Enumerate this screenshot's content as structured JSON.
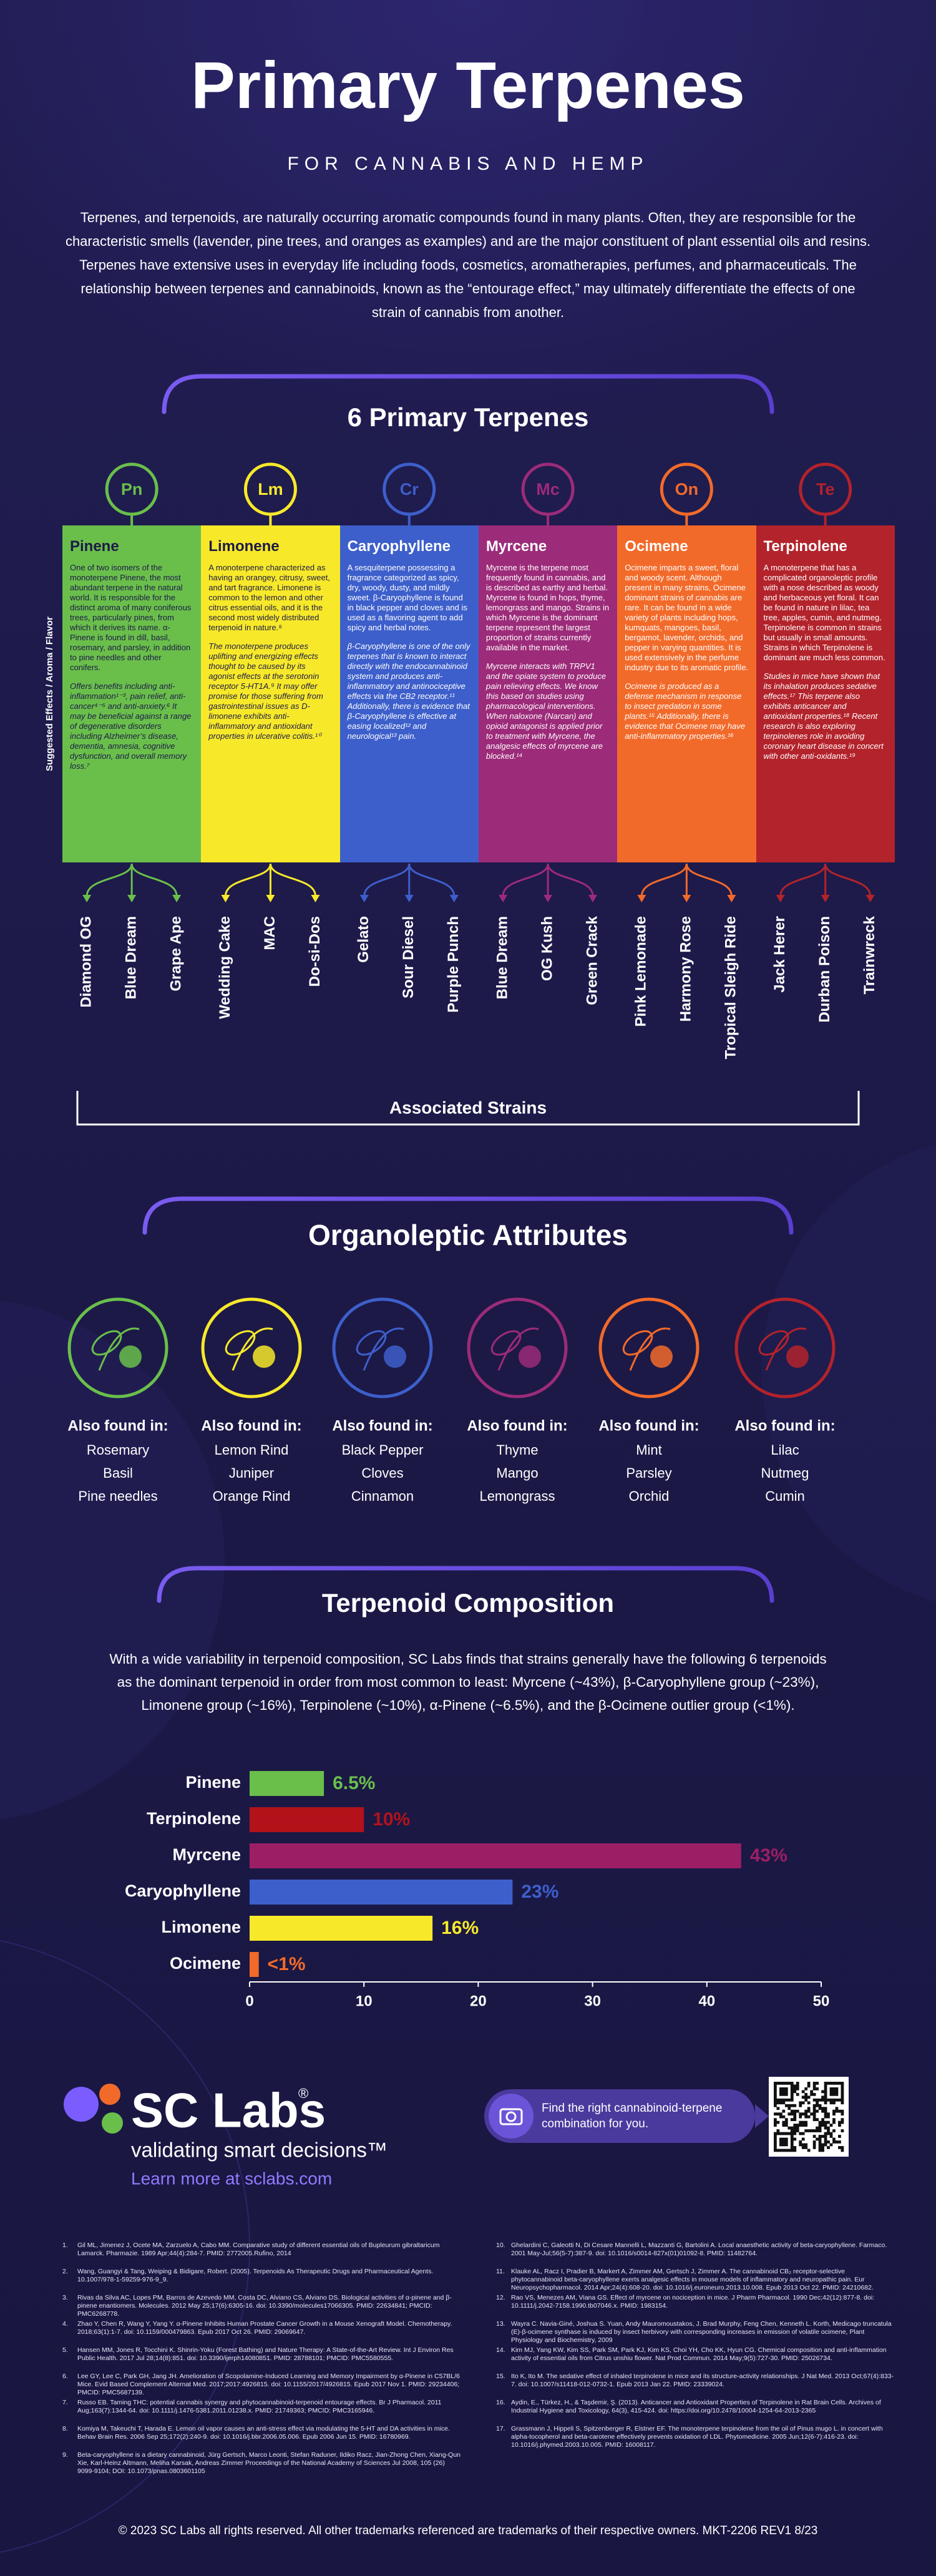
{
  "header": {
    "title": "Primary Terpenes",
    "subtitle": "FOR CANNABIS AND HEMP",
    "intro": "Terpenes, and terpenoids, are naturally occurring aromatic compounds found in many plants. Often, they are responsible for the characteristic smells (lavender, pine trees, and oranges as examples) and are the major constituent of plant essential oils and resins. Terpenes have extensive uses in everyday life including foods, cosmetics, aromatherapies, perfumes, and pharmaceuticals. The relationship between terpenes and cannabinoids, known as the “entourage effect,” may ultimately differentiate the effects of one strain of cannabis from another."
  },
  "terpenes_section": {
    "title": "6 Primary Terpenes",
    "side_label": "Suggested Effects / Aroma / Flavor",
    "strains_label": "Associated Strains"
  },
  "terpenes": [
    {
      "symbol": "Pn",
      "name": "Pinene",
      "color": "#6abf4b",
      "text_color": "#1d1a47",
      "description": "One of two isomers of the monoterpene Pinene, the most abundant terpene in the natural world. It is responsible for the distinct aroma of many coniferous trees, particularly pines, from which it derives its name. α-Pinene is found in dill, basil, rosemary, and parsley, in addition to pine needles and other conifers.",
      "effects": "Offers benefits including anti-inflammation¹⁻³, pain relief, anti-cancer⁴⁻⁵ and anti-anxiety.⁶ It may be beneficial against a range of degenerative disorders including Alzheimer’s disease, dementia, amnesia, cognitive dysfunction, and overall memory loss.⁷",
      "strains": [
        "Diamond OG",
        "Blue Dream",
        "Grape Ape"
      ],
      "found_in": [
        "Rosemary",
        "Basil",
        "Pine needles"
      ]
    },
    {
      "symbol": "Lm",
      "name": "Limonene",
      "color": "#f7e92a",
      "text_color": "#1d1a47",
      "description": "A monoterpene characterized as having an orangey, citrusy, sweet, and tart fragrance. Limonene is common to the lemon and other citrus essential oils, and it is the second most widely distributed terpenoid in nature.⁸",
      "effects": "The monoterpene produces uplifting and energizing effects thought to be caused by its agonist effects at the serotonin receptor 5-HT1A.⁹ It may offer promise for those suffering from gastrointestinal issues as D-limonene exhibits anti-inflammatory and antioxidant properties in ulcerative colitis.¹⁰",
      "strains": [
        "Wedding Cake",
        "MAC",
        "Do-si-Dos"
      ],
      "found_in": [
        "Lemon Rind",
        "Juniper",
        "Orange Rind"
      ]
    },
    {
      "symbol": "Cr",
      "name": "Caryophyllene",
      "color": "#3d5fcb",
      "text_color": "#ffffff",
      "description": "A sesquiterpene possessing a fragrance categorized as spicy, dry, woody, dusty, and mildly sweet. β-Caryophyllene is found in black pepper and cloves and is used as a flavoring agent to add spicy and herbal notes.",
      "effects": "β-Caryophyllene is one of the only terpenes that is known to interact directly with the endocannabinoid system and produces anti-inflammatory and antinociceptive effects via the CB2 receptor.¹¹ Additionally, there is evidence that β-Caryophyllene is effective at easing localized¹² and neurological¹³ pain.",
      "strains": [
        "Gelato",
        "Sour Diesel",
        "Purple Punch"
      ],
      "found_in": [
        "Black Pepper",
        "Cloves",
        "Cinnamon"
      ]
    },
    {
      "symbol": "Mc",
      "name": "Myrcene",
      "color": "#9c2b7a",
      "text_color": "#ffffff",
      "description": "Myrcene is the terpene most frequently found in cannabis, and is described as earthy and herbal. Myrcene is found in hops, thyme, lemongrass and mango. Strains in which Myrcene is the dominant terpene represent the largest proportion of strains currently available in the market.",
      "effects": "Myrcene interacts with TRPV1 and the opiate system to produce pain relieving effects. We know this based on studies using pharmacological interventions. When naloxone (Narcan) and opioid antagonist is applied prior to treatment with Myrcene, the analgesic effects of myrcene are blocked.¹⁴",
      "strains": [
        "Blue Dream",
        "OG Kush",
        "Green Crack"
      ],
      "found_in": [
        "Thyme",
        "Mango",
        "Lemongrass"
      ]
    },
    {
      "symbol": "On",
      "name": "Ocimene",
      "color": "#f26a2a",
      "text_color": "#ffffff",
      "description": "Ocimene imparts a sweet, floral and woody scent. Although present in many strains, Ocimene dominant strains of cannabis are rare. It can be found in a wide variety of plants including hops, kumquats, mangoes, basil, bergamot, lavender, orchids, and pepper in varying quantities. It is used extensively in the perfume industry due to its aromatic profile.",
      "effects": "Ocimene is produced as a defense mechanism in response to insect predation in some plants.¹⁵ Additionally, there is evidence that Ocimene may have anti-inflammatory properties.¹⁶",
      "strains": [
        "Pink Lemonade",
        "Harmony Rose",
        "Tropical Sleigh Ride"
      ],
      "found_in": [
        "Mint",
        "Parsley",
        "Orchid"
      ]
    },
    {
      "symbol": "Te",
      "name": "Terpinolene",
      "color": "#b3232b",
      "text_color": "#ffffff",
      "description": "A monoterpene that has a complicated organoleptic profile with a nose described as woody and herbaceous yet floral. It can be found in nature in lilac, tea tree, apples, cumin, and nutmeg. Terpinolene is common in strains but usually in small amounts. Strains in which Terpinolene is dominant are much less common.",
      "effects": "Studies in mice have shown that its inhalation produces sedative effects.¹⁷ This terpene also exhibits anticancer and antioxidant properties.¹⁸ Recent research is also exploring terpinolenes role in avoiding coronary heart disease in concert with other anti-oxidants.¹⁹",
      "strains": [
        "Jack Herer",
        "Durban Poison",
        "Trainwreck"
      ],
      "found_in": [
        "Lilac",
        "Nutmeg",
        "Cumin"
      ]
    }
  ],
  "organoleptic": {
    "title": "Organoleptic Attributes",
    "found_label": "Also found in:"
  },
  "composition": {
    "title": "Terpenoid Composition",
    "text": "With a wide variability in terpenoid composition, SC Labs finds that strains generally have the following 6 terpenoids as the dominant terpenoid in order from most common to least: Myrcene (~43%), β-Caryophyllene group (~23%), Limonene group (~16%), Terpinolene (~10%), α-Pinene (~6.5%), and the β-Ocimene outlier group (<1%)."
  },
  "chart_data": {
    "type": "bar",
    "orientation": "horizontal",
    "categories": [
      "Pinene",
      "Terpinolene",
      "Myrcene",
      "Caryophyllene",
      "Limonene",
      "Ocimene"
    ],
    "values": [
      6.5,
      10,
      43,
      23,
      16,
      0.8
    ],
    "value_labels": [
      "6.5%",
      "10%",
      "43%",
      "23%",
      "16%",
      "<1%"
    ],
    "colors": [
      "#6abf4b",
      "#b3121b",
      "#9c1f66",
      "#3d5fcb",
      "#f7e92a",
      "#f26a2a"
    ],
    "xlim": [
      0,
      50
    ],
    "xticks": [
      0,
      10,
      20,
      30,
      40,
      50
    ],
    "grid": false
  },
  "promo": {
    "brand": "SC Labs",
    "registered": "®",
    "tagline": "validating smart decisions™",
    "link": "Learn more at sclabs.com",
    "cta": "Find the right cannabinoid-terpene combination for you."
  },
  "references": [
    {
      "num": "1.",
      "text": "Gil ML, Jimenez J, Ocete MA, Zarzuelo A, Cabo MM. Comparative study of different essential oils of Bupleurum gibraltaricum Lamarck. Pharmazie. 1989 Apr;44(4):284-7. PMID: 2772005.Rufino, 2014"
    },
    {
      "num": "2.",
      "text": "Wang, Guangyi & Tang, Weiping & Bidigare, Robert. (2005). Terpenoids As Therapeutic Drugs and Pharmaceutical Agents. 10.1007/978-1-59259-976-9_9."
    },
    {
      "num": "3.",
      "text": "Rivas da Silva AC, Lopes PM, Barros de Azevedo MM, Costa DC, Alviano CS, Alviano DS. Biological activities of α-pinene and β-pinene enantiomers. Molecules. 2012 May 25;17(6):6305-16. doi: 10.3390/molecules17066305. PMID: 22634841; PMCID: PMC6268778."
    },
    {
      "num": "4.",
      "text": "Zhao Y, Chen R, Wang Y, Yang Y. α-Pinene Inhibits Human Prostate Cancer Growth in a Mouse Xenograft Model. Chemotherapy. 2018;63(1):1-7. doi: 10.1159/000479863. Epub 2017 Oct 26. PMID: 29069647."
    },
    {
      "num": "5.",
      "text": "Hansen MM, Jones R, Tocchini K. Shinrin-Yoku (Forest Bathing) and Nature Therapy: A State-of-the-Art Review. Int J Environ Res Public Health. 2017 Jul 28;14(8):851. doi: 10.3390/ijerph14080851. PMID: 28788101; PMCID: PMC5580555."
    },
    {
      "num": "6.",
      "text": "Lee GY, Lee C, Park GH, Jang JH. Amelioration of Scopolamine-Induced Learning and Memory Impairment by α-Pinene in C57BL/6 Mice. Evid Based Complement Alternat Med. 2017;2017:4926815. doi: 10.1155/2017/4926815. Epub 2017 Nov 1. PMID: 29234406; PMCID: PMC5687139."
    },
    {
      "num": "7.",
      "text": "Russo EB. Taming THC: potential cannabis synergy and phytocannabinoid-terpenoid entourage effects. Br J Pharmacol. 2011 Aug;163(7):1344-64. doi: 10.1111/j.1476-5381.2011.01238.x. PMID: 21749363; PMCID: PMC3165946."
    },
    {
      "num": "8.",
      "text": "Komiya M, Takeuchi T, Harada E. Lemon oil vapor causes an anti-stress effect via modulating the 5-HT and DA activities in mice. Behav Brain Res. 2006 Sep 25;172(2):240-9. doi: 10.1016/j.bbr.2006.05.006. Epub 2006 Jun 15. PMID: 16780969."
    },
    {
      "num": "9.",
      "text": "Beta-caryophyllene is a dietary cannabinoid, Jürg Gertsch, Marco Leonti, Stefan Raduner, Ildiko Racz, Jian-Zhong Chen, Xiang-Qun Xie, Karl-Heinz Altmann, Meliha Karsak, Andreas Zimmer Proceedings of the National Academy of Sciences Jul 2008, 105 (26) 9099-9104; DOI: 10.1073/pnas.0803601105"
    },
    {
      "num": "10.",
      "text": "Ghelardini C, Galeotti N, Di Cesare Mannelli L, Mazzanti G, Bartolini A. Local anaesthetic activity of beta-caryophyllene. Farmaco. 2001 May-Jul;56(5-7):387-9. doi: 10.1016/s0014-827x(01)01092-8. PMID: 11482764."
    },
    {
      "num": "11.",
      "text": "Klauke AL, Racz I, Pradier B, Markert A, Zimmer AM, Gertsch J, Zimmer A. The cannabinoid CB₂ receptor-selective phytocannabinoid beta-caryophyllene exerts analgesic effects in mouse models of inflammatory and neuropathic pain. Eur Neuropsychopharmacol. 2014 Apr;24(4):608-20. doi: 10.1016/j.euroneuro.2013.10.008. Epub 2013 Oct 22. PMID: 24210682."
    },
    {
      "num": "12.",
      "text": "Rao VS, Menezes AM, Viana GS. Effect of myrcene on nociception in mice. J Pharm Pharmacol. 1990 Dec;42(12):877-8. doi: 10.1111/j.2042-7158.1990.tb07046.x. PMID: 1983154."
    },
    {
      "num": "13.",
      "text": "Wayra C. Navia-Giné, Joshua S. Yuan, Andy Mauromoustakos, J. Brad Murphy, Feng Chen, Kenneth L. Korth, Medicago truncatula (E)-β-ocimene synthase is induced by insect herbivory with corresponding increases in emission of volatile ocimene, Plant Physiology and Biochemistry, 2009"
    },
    {
      "num": "14.",
      "text": "Kim MJ, Yang KW, Kim SS, Park SM, Park KJ, Kim KS, Choi YH, Cho KK, Hyun CG. Chemical composition and anti-inflammation activity of essential oils from Citrus unshiu flower. Nat Prod Commun. 2014 May;9(5):727-30. PMID: 25026734."
    },
    {
      "num": "15.",
      "text": "Ito K, Ito M. The sedative effect of inhaled terpinolene in mice and its structure-activity relationships. J Nat Med. 2013 Oct;67(4):833-7. doi: 10.1007/s11418-012-0732-1. Epub 2013 Jan 22. PMID: 23339024."
    },
    {
      "num": "16.",
      "text": "Aydin, E., Türkez, H., & Taşdemir, Ş. (2013). Anticancer and Antioxidant Properties of Terpinolene in Rat Brain Cells. Archives of Industrial Hygiene and Toxicology, 64(3), 415-424. doi: https://doi.org/10.2478/10004-1254-64-2013-2365"
    },
    {
      "num": "17.",
      "text": "Grassmann J, Hippeli S, Spitzenberger R, Elstner EF. The monoterpene terpinolene from the oil of Pinus mugo L. in concert with alpha-tocopherol and beta-carotene effectively prevents oxidation of LDL. Phytomedicine. 2005 Jun;12(6-7):416-23. doi: 10.1016/j.phymed.2003.10.005. PMID: 16008117."
    }
  ],
  "copyright": "© 2023 SC Labs all rights reserved. All other trademarks referenced are trademarks of their respective owners. MKT-2206 REV1 8/23"
}
